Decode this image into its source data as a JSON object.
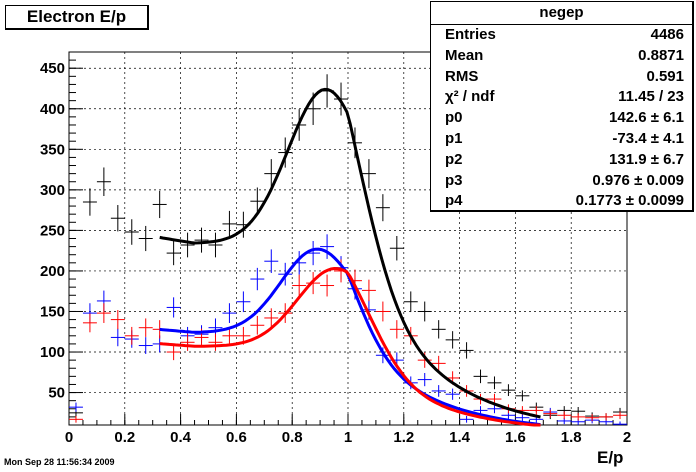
{
  "title": "Electron E/p",
  "stats": {
    "name": "negep",
    "rows": [
      {
        "key": "Entries",
        "value": "4486"
      },
      {
        "key": "Mean",
        "value": "0.8871"
      },
      {
        "key": "RMS",
        "value": "0.591"
      },
      {
        "key": "χ² / ndf",
        "value": "11.45 / 23"
      },
      {
        "key": "p0",
        "value": "142.6 ± 6.1"
      },
      {
        "key": "p1",
        "value": "-73.4 ± 4.1"
      },
      {
        "key": "p2",
        "value": "131.9 ± 6.7"
      },
      {
        "key": "p3",
        "value": "0.976 ± 0.009"
      },
      {
        "key": "p4",
        "value": "0.1773 ± 0.0099"
      }
    ]
  },
  "timestamp": "Mon Sep 28 11:56:34 2009",
  "chart_data": {
    "type": "scatter",
    "title": "Electron E/p",
    "xlabel": "E/p",
    "ylabel": "",
    "xlim": [
      0,
      2
    ],
    "ylim": [
      10,
      470
    ],
    "grid": true,
    "x_ticks": [
      "0",
      "0.2",
      "0.4",
      "0.6",
      "0.8",
      "1",
      "1.2",
      "1.4",
      "1.6",
      "1.8",
      "2"
    ],
    "y_ticks": [
      "50",
      "100",
      "150",
      "200",
      "250",
      "300",
      "350",
      "400",
      "450"
    ],
    "bin_width": 0.05,
    "series": [
      {
        "color": "#000000",
        "x": [
          0.025,
          0.075,
          0.125,
          0.175,
          0.225,
          0.275,
          0.325,
          0.375,
          0.425,
          0.475,
          0.525,
          0.575,
          0.625,
          0.675,
          0.725,
          0.775,
          0.825,
          0.875,
          0.925,
          0.975,
          1.025,
          1.075,
          1.125,
          1.175,
          1.225,
          1.275,
          1.325,
          1.375,
          1.425,
          1.475,
          1.525,
          1.575,
          1.625,
          1.675,
          1.725,
          1.775,
          1.825,
          1.875,
          1.925,
          1.975
        ],
        "y": [
          25,
          285,
          310,
          265,
          248,
          240,
          282,
          222,
          232,
          238,
          232,
          258,
          257,
          286,
          320,
          346,
          380,
          400,
          422,
          412,
          358,
          320,
          278,
          228,
          162,
          150,
          128,
          115,
          102,
          70,
          62,
          53,
          46,
          32,
          22,
          28,
          27,
          21,
          20,
          26
        ]
      },
      {
        "color": "#0000ff",
        "x": [
          0.025,
          0.075,
          0.125,
          0.175,
          0.225,
          0.275,
          0.325,
          0.375,
          0.425,
          0.475,
          0.525,
          0.575,
          0.625,
          0.675,
          0.725,
          0.775,
          0.825,
          0.875,
          0.925,
          0.975,
          1.025,
          1.075,
          1.125,
          1.175,
          1.225,
          1.275,
          1.325,
          1.375,
          1.425,
          1.475,
          1.525,
          1.575,
          1.625,
          1.675,
          1.725,
          1.775,
          1.825,
          1.875,
          1.925,
          1.975
        ],
        "y": [
          32,
          148,
          163,
          118,
          116,
          108,
          110,
          155,
          120,
          122,
          130,
          148,
          162,
          190,
          212,
          196,
          210,
          222,
          230,
          204,
          178,
          152,
          96,
          90,
          62,
          66,
          52,
          48,
          17,
          28,
          30,
          22,
          19,
          17,
          26,
          15,
          14,
          16,
          14,
          11
        ]
      },
      {
        "color": "#ff0000",
        "x": [
          0.025,
          0.075,
          0.125,
          0.175,
          0.225,
          0.275,
          0.325,
          0.375,
          0.425,
          0.475,
          0.525,
          0.575,
          0.625,
          0.675,
          0.725,
          0.775,
          0.825,
          0.875,
          0.925,
          0.975,
          1.025,
          1.075,
          1.125,
          1.175,
          1.225,
          1.275,
          1.325,
          1.375,
          1.425,
          1.475,
          1.525,
          1.575,
          1.625,
          1.675,
          1.725,
          1.775,
          1.825,
          1.875,
          1.925,
          1.975
        ],
        "y": [
          17,
          136,
          148,
          140,
          120,
          130,
          128,
          100,
          112,
          118,
          112,
          120,
          120,
          133,
          142,
          148,
          182,
          185,
          182,
          200,
          188,
          176,
          150,
          128,
          120,
          90,
          86,
          68,
          52,
          42,
          42,
          30,
          28,
          28,
          24,
          22,
          20,
          19,
          20,
          22
        ]
      }
    ],
    "fits": [
      {
        "color": "#000000",
        "x_range": [
          0.325,
          1.69
        ],
        "base": 234,
        "amplitude": 190,
        "mean": 0.92,
        "sigma": 0.135
      },
      {
        "color": "#0000ff",
        "x_range": [
          0.325,
          1.69
        ],
        "base": 124,
        "amplitude": 103,
        "mean": 0.89,
        "sigma": 0.13
      },
      {
        "color": "#ff0000",
        "x_range": [
          0.325,
          1.69
        ],
        "base": 107,
        "amplitude": 96,
        "mean": 0.955,
        "sigma": 0.135
      }
    ]
  }
}
